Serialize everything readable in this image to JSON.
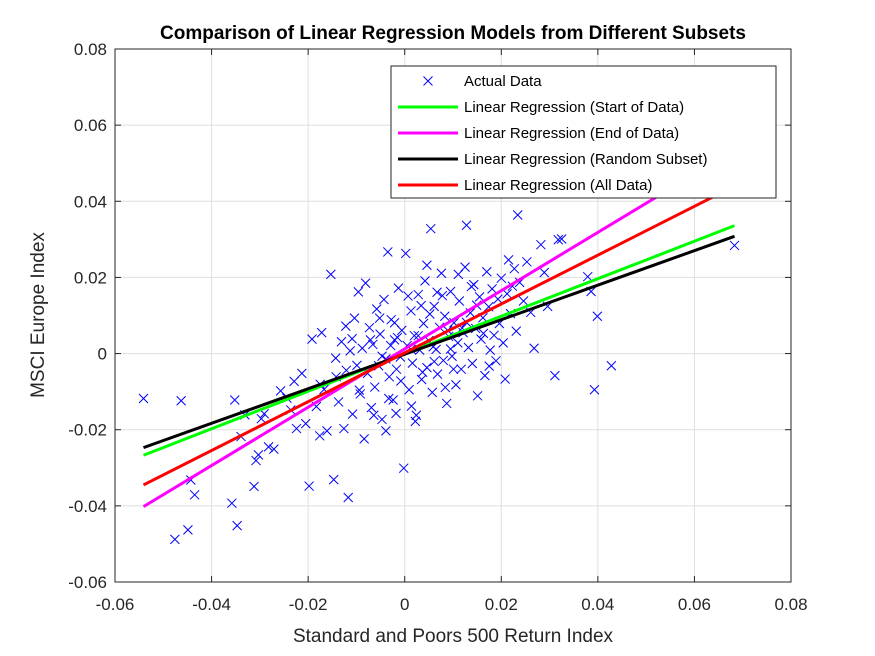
{
  "chart_data": {
    "type": "scatter",
    "title": "Comparison of Linear Regression Models from Different Subsets",
    "xlabel": "Standard and Poors 500 Return Index",
    "ylabel": "MSCI Europe Index",
    "xlim": [
      -0.06,
      0.08
    ],
    "ylim": [
      -0.06,
      0.08
    ],
    "xticks": [
      -0.06,
      -0.04,
      -0.02,
      0,
      0.02,
      0.04,
      0.06,
      0.08
    ],
    "yticks": [
      -0.06,
      -0.04,
      -0.02,
      0,
      0.02,
      0.04,
      0.06,
      0.08
    ],
    "xtick_labels": [
      "-0.06",
      "-0.04",
      "-0.02",
      "0",
      "0.02",
      "0.04",
      "0.06",
      "0.08"
    ],
    "ytick_labels": [
      "-0.06",
      "-0.04",
      "-0.02",
      "0",
      "0.02",
      "0.04",
      "0.06",
      "0.08"
    ],
    "grid": true,
    "legend_position": "top-right",
    "scatter": {
      "name": "Actual Data",
      "color": "#0000ff",
      "marker": "x",
      "points": [
        [
          -0.0541,
          -0.0118
        ],
        [
          -0.0476,
          -0.0488
        ],
        [
          -0.0463,
          -0.0124
        ],
        [
          -0.0449,
          -0.0463
        ],
        [
          -0.0435,
          -0.0371
        ],
        [
          -0.0443,
          -0.0332
        ],
        [
          -0.0358,
          -0.0393
        ],
        [
          -0.0347,
          -0.0452
        ],
        [
          -0.0352,
          -0.0122
        ],
        [
          -0.0339,
          -0.0218
        ],
        [
          -0.0331,
          -0.0161
        ],
        [
          -0.0312,
          -0.0349
        ],
        [
          -0.0308,
          -0.0281
        ],
        [
          -0.0303,
          -0.0266
        ],
        [
          -0.0297,
          -0.0171
        ],
        [
          -0.0291,
          -0.0158
        ],
        [
          -0.0282,
          -0.0245
        ],
        [
          -0.0271,
          -0.0251
        ],
        [
          -0.0257,
          -0.0098
        ],
        [
          -0.0244,
          -0.0117
        ],
        [
          -0.0236,
          -0.0148
        ],
        [
          -0.0229,
          -0.0073
        ],
        [
          -0.0224,
          -0.0197
        ],
        [
          -0.0213,
          -0.0052
        ],
        [
          -0.0205,
          -0.0184
        ],
        [
          -0.0198,
          -0.0348
        ],
        [
          -0.0192,
          0.0038
        ],
        [
          -0.0183,
          -0.0139
        ],
        [
          -0.0176,
          -0.0216
        ],
        [
          -0.0172,
          0.0055
        ],
        [
          -0.0167,
          -0.0094
        ],
        [
          -0.0161,
          -0.0203
        ],
        [
          -0.0153,
          0.0208
        ],
        [
          -0.0147,
          -0.0331
        ],
        [
          -0.0142,
          -0.0061
        ],
        [
          -0.0137,
          -0.0127
        ],
        [
          -0.0131,
          0.0031
        ],
        [
          -0.0126,
          -0.0197
        ],
        [
          -0.0121,
          -0.0044
        ],
        [
          -0.0117,
          -0.0378
        ],
        [
          -0.0113,
          0.0007
        ],
        [
          -0.0108,
          -0.0159
        ],
        [
          -0.0104,
          0.0093
        ],
        [
          -0.0099,
          -0.0031
        ],
        [
          -0.0096,
          0.0162
        ],
        [
          -0.0092,
          -0.0106
        ],
        [
          -0.0088,
          0.0014
        ],
        [
          -0.0084,
          -0.0224
        ],
        [
          -0.0081,
          0.0185
        ],
        [
          -0.0077,
          -0.0052
        ],
        [
          -0.0073,
          0.0068
        ],
        [
          -0.0069,
          -0.0142
        ],
        [
          -0.0066,
          0.0024
        ],
        [
          -0.0062,
          -0.0088
        ],
        [
          -0.0058,
          0.0117
        ],
        [
          -0.0054,
          -0.0032
        ],
        [
          -0.0051,
          0.0051
        ],
        [
          -0.0047,
          -0.0173
        ],
        [
          -0.0043,
          0.0142
        ],
        [
          -0.0039,
          -0.0014
        ],
        [
          -0.0035,
          0.0267
        ],
        [
          -0.0032,
          -0.0061
        ],
        [
          -0.0028,
          0.0089
        ],
        [
          -0.0024,
          -0.0122
        ],
        [
          -0.0021,
          0.0036
        ],
        [
          -0.0017,
          -0.0041
        ],
        [
          -0.0013,
          0.0172
        ],
        [
          -0.0009,
          -0.0009
        ],
        [
          -0.0006,
          0.0061
        ],
        [
          -0.0002,
          -0.0301
        ],
        [
          0.0002,
          0.0263
        ],
        [
          0.0005,
          0.0021
        ],
        [
          0.0009,
          -0.0095
        ],
        [
          0.0013,
          0.0112
        ],
        [
          0.0016,
          -0.0025
        ],
        [
          0.002,
          0.0047
        ],
        [
          0.0024,
          -0.0162
        ],
        [
          0.0028,
          0.0155
        ],
        [
          0.0031,
          0.0009
        ],
        [
          0.0035,
          -0.0068
        ],
        [
          0.0039,
          0.0079
        ],
        [
          0.0042,
          0.0191
        ],
        [
          0.0046,
          -0.0037
        ],
        [
          0.005,
          0.0034
        ],
        [
          0.0054,
          0.0328
        ],
        [
          0.0057,
          -0.0102
        ],
        [
          0.0061,
          0.0124
        ],
        [
          0.0065,
          0.0011
        ],
        [
          0.0068,
          -0.0054
        ],
        [
          0.0072,
          0.0069
        ],
        [
          0.0076,
          0.0211
        ],
        [
          0.008,
          -0.0018
        ],
        [
          0.0083,
          0.0098
        ],
        [
          0.0087,
          -0.0131
        ],
        [
          0.0091,
          0.0045
        ],
        [
          0.0095,
          0.0163
        ],
        [
          0.0098,
          -0.0007
        ],
        [
          0.0102,
          0.0081
        ],
        [
          0.0106,
          -0.0082
        ],
        [
          0.011,
          0.0028
        ],
        [
          0.0113,
          0.0138
        ],
        [
          0.0117,
          -0.0041
        ],
        [
          0.0121,
          0.0055
        ],
        [
          0.0125,
          0.0227
        ],
        [
          0.0128,
          0.0337
        ],
        [
          0.0132,
          0.0016
        ],
        [
          0.0136,
          0.0107
        ],
        [
          0.014,
          -0.0026
        ],
        [
          0.0143,
          0.0181
        ],
        [
          0.0147,
          0.0066
        ],
        [
          0.0151,
          -0.0111
        ],
        [
          0.0155,
          0.0149
        ],
        [
          0.0158,
          0.0038
        ],
        [
          0.0162,
          0.0094
        ],
        [
          0.0166,
          -0.0058
        ],
        [
          0.017,
          0.0215
        ],
        [
          0.0174,
          0.0123
        ],
        [
          0.0177,
          0.0009
        ],
        [
          0.0181,
          0.017
        ],
        [
          0.0185,
          0.0048
        ],
        [
          0.0189,
          -0.0019
        ],
        [
          0.0193,
          0.0143
        ],
        [
          0.0196,
          0.0079
        ],
        [
          0.02,
          0.0198
        ],
        [
          0.0204,
          0.0028
        ],
        [
          0.0208,
          -0.0067
        ],
        [
          0.0212,
          0.0157
        ],
        [
          0.0215,
          0.0246
        ],
        [
          0.0219,
          0.0105
        ],
        [
          0.0223,
          0.0177
        ],
        [
          0.0227,
          0.0223
        ],
        [
          0.0231,
          0.0059
        ],
        [
          0.0234,
          0.0364
        ],
        [
          0.0238,
          0.0187
        ],
        [
          0.0246,
          0.0138
        ],
        [
          0.0253,
          0.0241
        ],
        [
          0.0261,
          0.0108
        ],
        [
          0.0268,
          0.0014
        ],
        [
          0.0282,
          0.0286
        ],
        [
          0.0289,
          0.0213
        ],
        [
          0.0296,
          0.0124
        ],
        [
          0.0311,
          -0.0058
        ],
        [
          0.0318,
          0.0299
        ],
        [
          0.0325,
          0.0301
        ],
        [
          0.0379,
          0.0202
        ],
        [
          0.0386,
          0.0163
        ],
        [
          0.0393,
          -0.0095
        ],
        [
          0.0399,
          0.0098
        ],
        [
          0.0428,
          -0.0032
        ],
        [
          0.0683,
          0.0284
        ],
        [
          -0.0021,
          0.0081
        ],
        [
          0.0007,
          0.0151
        ],
        [
          -0.0064,
          -0.0162
        ],
        [
          0.0014,
          -0.0138
        ],
        [
          0.0078,
          0.0152
        ],
        [
          -0.0109,
          0.0039
        ],
        [
          0.0046,
          0.0232
        ],
        [
          -0.0039,
          -0.0203
        ],
        [
          0.0101,
          -0.0041
        ],
        [
          0.0163,
          0.0053
        ],
        [
          -0.0175,
          -0.0081
        ],
        [
          0.0028,
          0.0047
        ],
        [
          -0.0008,
          -0.0072
        ],
        [
          0.0061,
          -0.0021
        ],
        [
          0.0138,
          0.0176
        ],
        [
          -0.0052,
          0.0093
        ],
        [
          0.0119,
          0.0067
        ],
        [
          -0.0029,
          0.0021
        ],
        [
          0.0084,
          -0.0089
        ],
        [
          0.0034,
          0.0126
        ],
        [
          -0.0143,
          -0.0012
        ],
        [
          0.0095,
          0.0012
        ],
        [
          -0.0018,
          -0.0157
        ],
        [
          0.0052,
          0.0104
        ],
        [
          0.0175,
          -0.0033
        ],
        [
          -0.0094,
          -0.0096
        ],
        [
          0.0022,
          -0.0178
        ],
        [
          0.0111,
          0.0208
        ],
        [
          -0.0071,
          0.0036
        ],
        [
          0.0067,
          0.0161
        ],
        [
          -0.0033,
          -0.0118
        ],
        [
          0.0149,
          0.0127
        ],
        [
          0.0013,
          0.0011
        ],
        [
          -0.0122,
          0.0072
        ],
        [
          0.0089,
          0.0061
        ],
        [
          -0.0047,
          -0.0007
        ],
        [
          0.0037,
          -0.0049
        ],
        [
          0.0128,
          0.0082
        ],
        [
          -0.0015,
          0.0042
        ],
        [
          0.0059,
          0.0018
        ]
      ]
    },
    "series": [
      {
        "name": "Linear Regression (Start of Data)",
        "color": "#00ff00",
        "x": [
          -0.0541,
          0.0683
        ],
        "y": [
          -0.0267,
          0.0336
        ]
      },
      {
        "name": "Linear Regression (End of Data)",
        "color": "#ff00ff",
        "x": [
          -0.0541,
          0.0683
        ],
        "y": [
          -0.0402,
          0.0535
        ]
      },
      {
        "name": "Linear Regression (Random Subset)",
        "color": "#000000",
        "x": [
          -0.0541,
          0.0683
        ],
        "y": [
          -0.0247,
          0.0308
        ]
      },
      {
        "name": "Linear Regression (All Data)",
        "color": "#ff0000",
        "x": [
          -0.0541,
          0.0683
        ],
        "y": [
          -0.0345,
          0.044
        ]
      }
    ]
  }
}
